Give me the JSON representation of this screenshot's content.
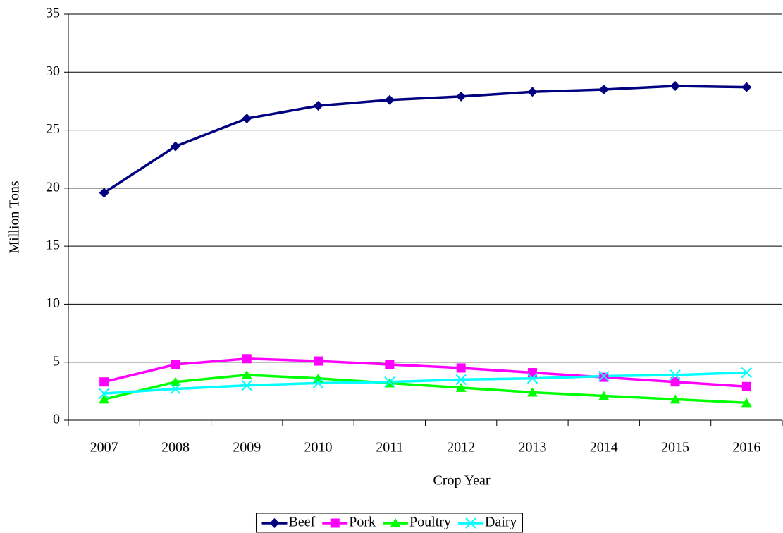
{
  "chart_data": {
    "type": "line",
    "x_label": "Crop Year",
    "y_label": "Million Tons",
    "categories": [
      "2007",
      "2008",
      "2009",
      "2010",
      "2011",
      "2012",
      "2013",
      "2014",
      "2015",
      "2016"
    ],
    "series": [
      {
        "name": "Beef",
        "color": "#000080",
        "marker": "diamond",
        "values": [
          19.6,
          23.6,
          26.0,
          27.1,
          27.6,
          27.9,
          28.3,
          28.5,
          28.8,
          28.7
        ]
      },
      {
        "name": "Pork",
        "color": "#ff00ff",
        "marker": "square",
        "values": [
          3.3,
          4.8,
          5.3,
          5.1,
          4.8,
          4.5,
          4.1,
          3.7,
          3.3,
          2.9
        ]
      },
      {
        "name": "Poultry",
        "color": "#00ff00",
        "marker": "triangle",
        "values": [
          1.8,
          3.3,
          3.9,
          3.6,
          3.2,
          2.8,
          2.4,
          2.1,
          1.8,
          1.5
        ]
      },
      {
        "name": "Dairy",
        "color": "#00ffff",
        "marker": "x",
        "values": [
          2.3,
          2.7,
          3.0,
          3.2,
          3.3,
          3.5,
          3.6,
          3.8,
          3.9,
          4.1
        ]
      }
    ],
    "ylim": [
      0,
      35
    ],
    "yticks": [
      0,
      5,
      10,
      15,
      20,
      25,
      30,
      35
    ],
    "grid": true,
    "legend": "bottom"
  }
}
